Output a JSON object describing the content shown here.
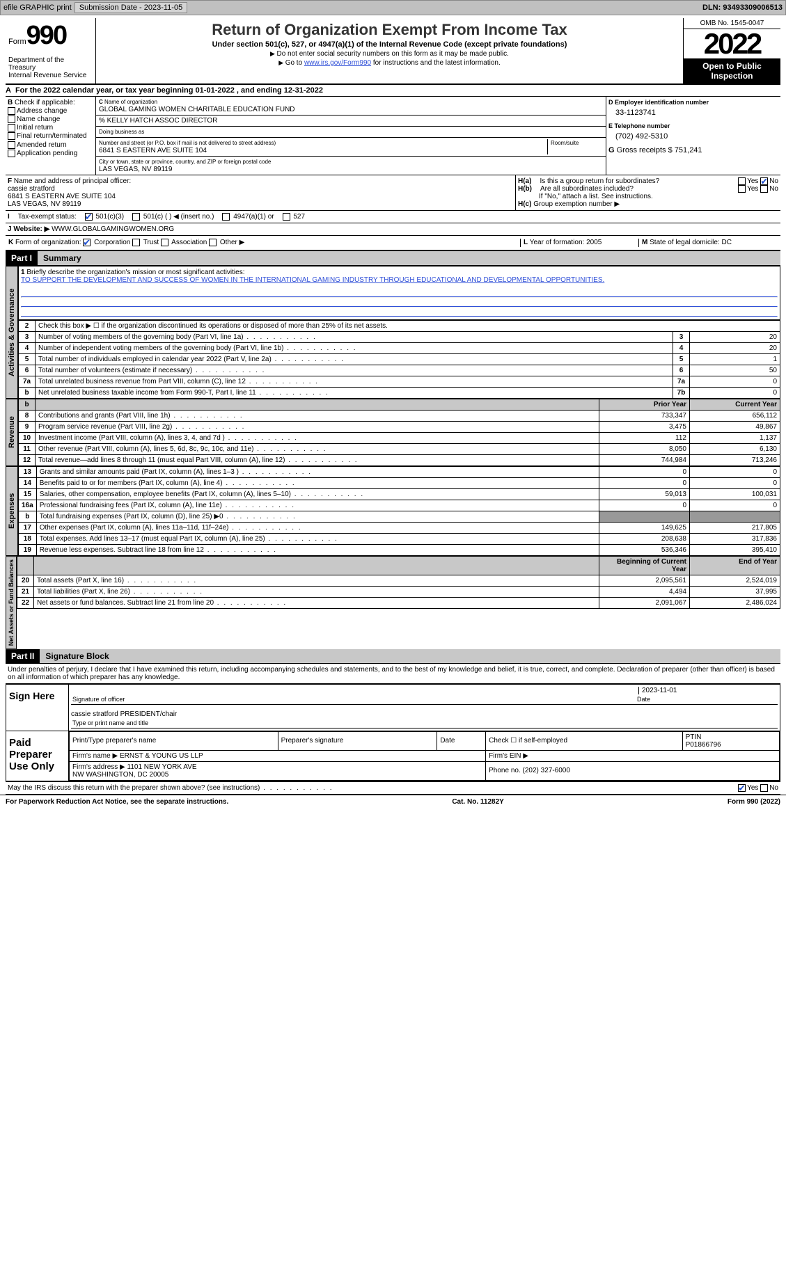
{
  "topbar": {
    "efile": "efile GRAPHIC print",
    "sub_label": "Submission Date - ",
    "sub_date": "2023-11-05",
    "dln_label": "DLN: ",
    "dln": "93493309006513"
  },
  "header": {
    "form_word": "Form",
    "form_no": "990",
    "title": "Return of Organization Exempt From Income Tax",
    "sub": "Under section 501(c), 527, or 4947(a)(1) of the Internal Revenue Code (except private foundations)",
    "note1": "Do not enter social security numbers on this form as it may be made public.",
    "note2_pre": "Go to ",
    "note2_link": "www.irs.gov/Form990",
    "note2_post": " for instructions and the latest information.",
    "dept": "Department of the Treasury\nInternal Revenue Service",
    "omb": "OMB No. 1545-0047",
    "year": "2022",
    "open": "Open to Public Inspection"
  },
  "A": {
    "text_pre": "For the 2022 calendar year, or tax year beginning ",
    "begin": "01-01-2022",
    "mid": " , and ending ",
    "end": "12-31-2022"
  },
  "B": {
    "label": "Check if applicable:",
    "items": [
      "Address change",
      "Name change",
      "Initial return",
      "Final return/terminated",
      "Amended return",
      "Application pending"
    ]
  },
  "C": {
    "name_label": "Name of organization",
    "name": "GLOBAL GAMING WOMEN CHARITABLE EDUCATION FUND",
    "care": "% KELLY HATCH ASSOC DIRECTOR",
    "dba_label": "Doing business as",
    "addr_label": "Number and street (or P.O. box if mail is not delivered to street address)",
    "room_label": "Room/suite",
    "addr": "6841 S EASTERN AVE SUITE 104",
    "city_label": "City or town, state or province, country, and ZIP or foreign postal code",
    "city": "LAS VEGAS, NV  89119"
  },
  "D": {
    "label": "Employer identification number",
    "val": "33-1123741"
  },
  "E": {
    "label": "Telephone number",
    "val": "(702) 492-5310"
  },
  "G": {
    "label": "Gross receipts $",
    "val": "751,241"
  },
  "F": {
    "label": "Name and address of principal officer:",
    "name": "cassie stratford",
    "addr1": "6841 S EASTERN AVE SUITE 104",
    "addr2": "LAS VEGAS, NV  89119"
  },
  "H": {
    "a": "Is this a group return for subordinates?",
    "b": "Are all subordinates included?",
    "note": "If \"No,\" attach a list. See instructions.",
    "c": "Group exemption number ▶",
    "yes": "Yes",
    "no": "No"
  },
  "I": {
    "label": "Tax-exempt status:",
    "o1": "501(c)(3)",
    "o2": "501(c) (  ) ◀ (insert no.)",
    "o3": "4947(a)(1) or",
    "o4": "527"
  },
  "J": {
    "label": "Website: ▶",
    "val": "WWW.GLOBALGAMINGWOMEN.ORG"
  },
  "K": {
    "label": "Form of organization:",
    "o1": "Corporation",
    "o2": "Trust",
    "o3": "Association",
    "o4": "Other ▶"
  },
  "L": {
    "label": "Year of formation:",
    "val": "2005"
  },
  "M": {
    "label": "State of legal domicile:",
    "val": "DC"
  },
  "part1": {
    "hdr": "Part I",
    "title": "Summary"
  },
  "mission": {
    "num": "1",
    "label": "Briefly describe the organization's mission or most significant activities:",
    "text": "TO SUPPORT THE DEVELOPMENT AND SUCCESS OF WOMEN IN THE INTERNATIONAL GAMING INDUSTRY THROUGH EDUCATIONAL AND DEVELOPMENTAL OPPORTUNITIES."
  },
  "gov": {
    "side": "Activities & Governance",
    "l2": "Check this box ▶ ☐ if the organization discontinued its operations or disposed of more than 25% of its net assets.",
    "rows": [
      {
        "n": "3",
        "d": "Number of voting members of the governing body (Part VI, line 1a)",
        "r": "3",
        "v": "20"
      },
      {
        "n": "4",
        "d": "Number of independent voting members of the governing body (Part VI, line 1b)",
        "r": "4",
        "v": "20"
      },
      {
        "n": "5",
        "d": "Total number of individuals employed in calendar year 2022 (Part V, line 2a)",
        "r": "5",
        "v": "1"
      },
      {
        "n": "6",
        "d": "Total number of volunteers (estimate if necessary)",
        "r": "6",
        "v": "50"
      },
      {
        "n": "7a",
        "d": "Total unrelated business revenue from Part VIII, column (C), line 12",
        "r": "7a",
        "v": "0"
      },
      {
        "n": "b",
        "d": "Net unrelated business taxable income from Form 990-T, Part I, line 11",
        "r": "7b",
        "v": "0"
      }
    ]
  },
  "rev": {
    "side": "Revenue",
    "prior": "Prior Year",
    "curr": "Current Year",
    "rows": [
      {
        "n": "8",
        "d": "Contributions and grants (Part VIII, line 1h)",
        "p": "733,347",
        "c": "656,112"
      },
      {
        "n": "9",
        "d": "Program service revenue (Part VIII, line 2g)",
        "p": "3,475",
        "c": "49,867"
      },
      {
        "n": "10",
        "d": "Investment income (Part VIII, column (A), lines 3, 4, and 7d )",
        "p": "112",
        "c": "1,137"
      },
      {
        "n": "11",
        "d": "Other revenue (Part VIII, column (A), lines 5, 6d, 8c, 9c, 10c, and 11e)",
        "p": "8,050",
        "c": "6,130"
      },
      {
        "n": "12",
        "d": "Total revenue—add lines 8 through 11 (must equal Part VIII, column (A), line 12)",
        "p": "744,984",
        "c": "713,246"
      }
    ]
  },
  "exp": {
    "side": "Expenses",
    "rows": [
      {
        "n": "13",
        "d": "Grants and similar amounts paid (Part IX, column (A), lines 1–3 )",
        "p": "0",
        "c": "0"
      },
      {
        "n": "14",
        "d": "Benefits paid to or for members (Part IX, column (A), line 4)",
        "p": "0",
        "c": "0"
      },
      {
        "n": "15",
        "d": "Salaries, other compensation, employee benefits (Part IX, column (A), lines 5–10)",
        "p": "59,013",
        "c": "100,031"
      },
      {
        "n": "16a",
        "d": "Professional fundraising fees (Part IX, column (A), line 11e)",
        "p": "0",
        "c": "0"
      },
      {
        "n": "b",
        "d": "Total fundraising expenses (Part IX, column (D), line 25) ▶0",
        "p": "",
        "c": "",
        "shade": true
      },
      {
        "n": "17",
        "d": "Other expenses (Part IX, column (A), lines 11a–11d, 11f–24e)",
        "p": "149,625",
        "c": "217,805"
      },
      {
        "n": "18",
        "d": "Total expenses. Add lines 13–17 (must equal Part IX, column (A), line 25)",
        "p": "208,638",
        "c": "317,836"
      },
      {
        "n": "19",
        "d": "Revenue less expenses. Subtract line 18 from line 12",
        "p": "536,346",
        "c": "395,410"
      }
    ]
  },
  "net": {
    "side": "Net Assets or Fund Balances",
    "begin": "Beginning of Current Year",
    "end": "End of Year",
    "rows": [
      {
        "n": "20",
        "d": "Total assets (Part X, line 16)",
        "p": "2,095,561",
        "c": "2,524,019"
      },
      {
        "n": "21",
        "d": "Total liabilities (Part X, line 26)",
        "p": "4,494",
        "c": "37,995"
      },
      {
        "n": "22",
        "d": "Net assets or fund balances. Subtract line 21 from line 20",
        "p": "2,091,067",
        "c": "2,486,024"
      }
    ]
  },
  "part2": {
    "hdr": "Part II",
    "title": "Signature Block",
    "decl": "Under penalties of perjury, I declare that I have examined this return, including accompanying schedules and statements, and to the best of my knowledge and belief, it is true, correct, and complete. Declaration of preparer (other than officer) is based on all information of which preparer has any knowledge."
  },
  "sign": {
    "label": "Sign Here",
    "date": "2023-11-01",
    "sig_label": "Signature of officer",
    "date_label": "Date",
    "name": "cassie stratford PRESIDENT/chair",
    "name_label": "Type or print name and title"
  },
  "prep": {
    "label": "Paid Preparer Use Only",
    "h1": "Print/Type preparer's name",
    "h2": "Preparer's signature",
    "h3": "Date",
    "h4": "Check ☐ if self-employed",
    "h5": "PTIN",
    "ptin": "P01866796",
    "firm_label": "Firm's name  ▶",
    "firm": "ERNST & YOUNG US LLP",
    "ein_label": "Firm's EIN ▶",
    "addr_label": "Firm's address ▶",
    "addr": "1101 NEW YORK AVE\nNW WASHINGTON, DC  20005",
    "phone_label": "Phone no.",
    "phone": "(202) 327-6000"
  },
  "irs_q": "May the IRS discuss this return with the preparer shown above? (see instructions)",
  "footer": {
    "l": "For Paperwork Reduction Act Notice, see the separate instructions.",
    "m": "Cat. No. 11282Y",
    "r": "Form 990 (2022)"
  }
}
